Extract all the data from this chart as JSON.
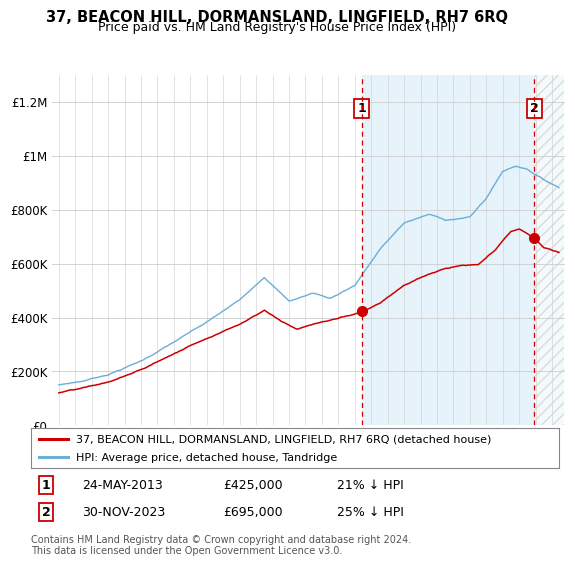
{
  "title": "37, BEACON HILL, DORMANSLAND, LINGFIELD, RH7 6RQ",
  "subtitle": "Price paid vs. HM Land Registry's House Price Index (HPI)",
  "ylim": [
    0,
    1300000
  ],
  "yticks": [
    0,
    200000,
    400000,
    600000,
    800000,
    1000000,
    1200000
  ],
  "ytick_labels": [
    "£0",
    "£200K",
    "£400K",
    "£600K",
    "£800K",
    "£1M",
    "£1.2M"
  ],
  "hpi_color": "#6baed6",
  "hpi_fill_color": "#d9eaf7",
  "price_color": "#cc0000",
  "vline_color": "#cc0000",
  "annotation1_date": "24-MAY-2013",
  "annotation1_price": "£425,000",
  "annotation1_hpi": "21% ↓ HPI",
  "annotation2_date": "30-NOV-2023",
  "annotation2_price": "£695,000",
  "annotation2_hpi": "25% ↓ HPI",
  "legend_line1": "37, BEACON HILL, DORMANSLAND, LINGFIELD, RH7 6RQ (detached house)",
  "legend_line2": "HPI: Average price, detached house, Tandridge",
  "footer": "Contains HM Land Registry data © Crown copyright and database right 2024.\nThis data is licensed under the Open Government Licence v3.0."
}
